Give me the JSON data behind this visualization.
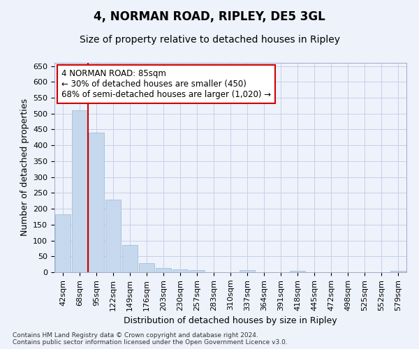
{
  "title": "4, NORMAN ROAD, RIPLEY, DE5 3GL",
  "subtitle": "Size of property relative to detached houses in Ripley",
  "xlabel": "Distribution of detached houses by size in Ripley",
  "ylabel": "Number of detached properties",
  "categories": [
    "42sqm",
    "68sqm",
    "95sqm",
    "122sqm",
    "149sqm",
    "176sqm",
    "203sqm",
    "230sqm",
    "257sqm",
    "283sqm",
    "310sqm",
    "337sqm",
    "364sqm",
    "391sqm",
    "418sqm",
    "445sqm",
    "472sqm",
    "498sqm",
    "525sqm",
    "552sqm",
    "579sqm"
  ],
  "values": [
    182,
    510,
    440,
    228,
    85,
    28,
    13,
    8,
    6,
    0,
    0,
    7,
    0,
    0,
    5,
    0,
    0,
    0,
    0,
    0,
    5
  ],
  "bar_color": "#c5d8ed",
  "bar_edge_color": "#9ab8d4",
  "red_line_x": 1.5,
  "annotation_text": "4 NORMAN ROAD: 85sqm\n← 30% of detached houses are smaller (450)\n68% of semi-detached houses are larger (1,020) →",
  "annotation_box_color": "#ffffff",
  "annotation_box_edge_color": "#cc0000",
  "red_line_color": "#cc0000",
  "ylim": [
    0,
    660
  ],
  "yticks": [
    0,
    50,
    100,
    150,
    200,
    250,
    300,
    350,
    400,
    450,
    500,
    550,
    600,
    650
  ],
  "footnote": "Contains HM Land Registry data © Crown copyright and database right 2024.\nContains public sector information licensed under the Open Government Licence v3.0.",
  "background_color": "#eef2fb",
  "grid_color": "#c8cfe8",
  "title_fontsize": 12,
  "subtitle_fontsize": 10,
  "axis_label_fontsize": 9,
  "tick_fontsize": 8,
  "annotation_fontsize": 8.5,
  "footnote_fontsize": 6.5
}
